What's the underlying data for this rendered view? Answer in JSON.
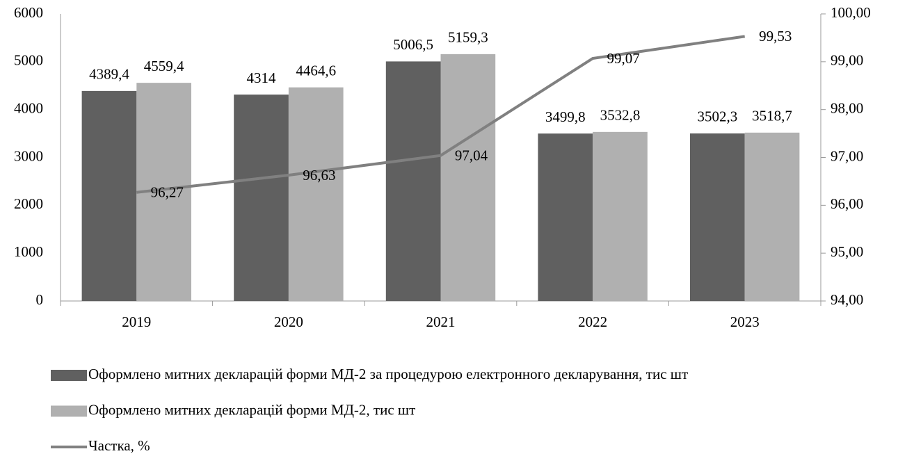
{
  "chart_data": {
    "type": "bar",
    "categories": [
      "2019",
      "2020",
      "2021",
      "2022",
      "2023"
    ],
    "series": [
      {
        "name": "Оформлено митних декларацій форми МД-2 за процедурою електронного декларування, тис шт",
        "color": "#606060",
        "type": "bar",
        "values": [
          4389.4,
          4314,
          5006.5,
          3499.8,
          3502.3
        ],
        "value_labels": [
          "4389,4",
          "4314",
          "5006,5",
          "3499,8",
          "3502,3"
        ]
      },
      {
        "name": "Оформлено митних декларацій форми МД-2, тис шт",
        "color": "#b0b0b0",
        "type": "bar",
        "values": [
          4559.4,
          4464.6,
          5159.3,
          3532.8,
          3518.7
        ],
        "value_labels": [
          "4559,4",
          "4464,6",
          "5159,3",
          "3532,8",
          "3518,7"
        ]
      },
      {
        "name": "Частка, %",
        "color": "#808080",
        "type": "line",
        "axis": "y2",
        "values": [
          96.27,
          96.63,
          97.04,
          99.07,
          99.53
        ],
        "value_labels": [
          "96,27",
          "96,63",
          "97,04",
          "99,07",
          "99,53"
        ]
      }
    ],
    "ylim": [
      0,
      6000
    ],
    "yticks": [
      0,
      1000,
      2000,
      3000,
      4000,
      5000,
      6000
    ],
    "y2lim": [
      94,
      100
    ],
    "y2ticks": [
      {
        "value": 94,
        "label": "94,00"
      },
      {
        "value": 95,
        "label": "95,00"
      },
      {
        "value": 96,
        "label": "96,00"
      },
      {
        "value": 97,
        "label": "97,00"
      },
      {
        "value": 98,
        "label": "98,00"
      },
      {
        "value": 99,
        "label": "99,00"
      },
      {
        "value": 100,
        "label": "100,00"
      }
    ],
    "legend": "bottom"
  }
}
